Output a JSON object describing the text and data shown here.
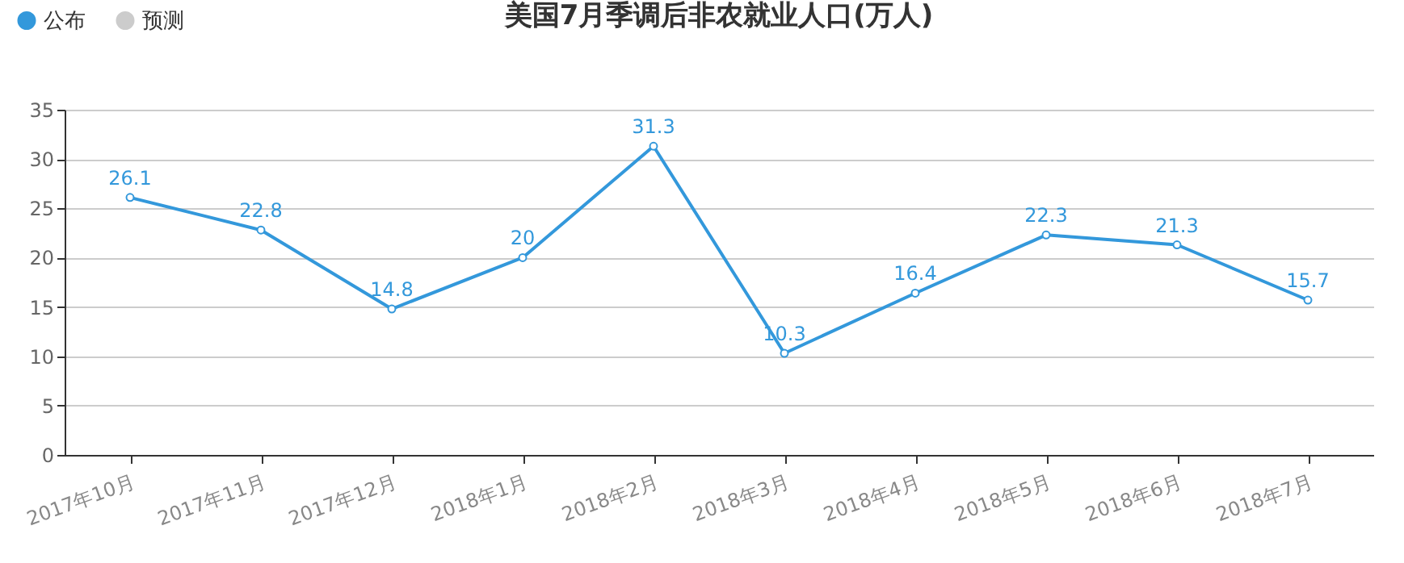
{
  "chart_data": {
    "type": "line",
    "title": "美国7月季调后非农就业人口(万人)",
    "categories": [
      "2017年10月",
      "2017年11月",
      "2017年12月",
      "2018年1月",
      "2018年2月",
      "2018年3月",
      "2018年4月",
      "2018年5月",
      "2018年6月",
      "2018年7月"
    ],
    "series": [
      {
        "name": "公布",
        "color": "#3398db",
        "values": [
          26.1,
          22.8,
          14.8,
          20,
          31.3,
          10.3,
          16.4,
          22.3,
          21.3,
          15.7
        ]
      },
      {
        "name": "预测",
        "color": "#cccccc",
        "values": [
          null,
          null,
          null,
          null,
          null,
          null,
          null,
          null,
          null,
          null
        ]
      }
    ],
    "ylim": [
      0,
      35
    ],
    "yticks": [
      0,
      5,
      10,
      15,
      20,
      25,
      30,
      35
    ],
    "grid": "y",
    "legend": "top left",
    "marker": "circle",
    "line_style": "solid",
    "data_labels": true
  }
}
